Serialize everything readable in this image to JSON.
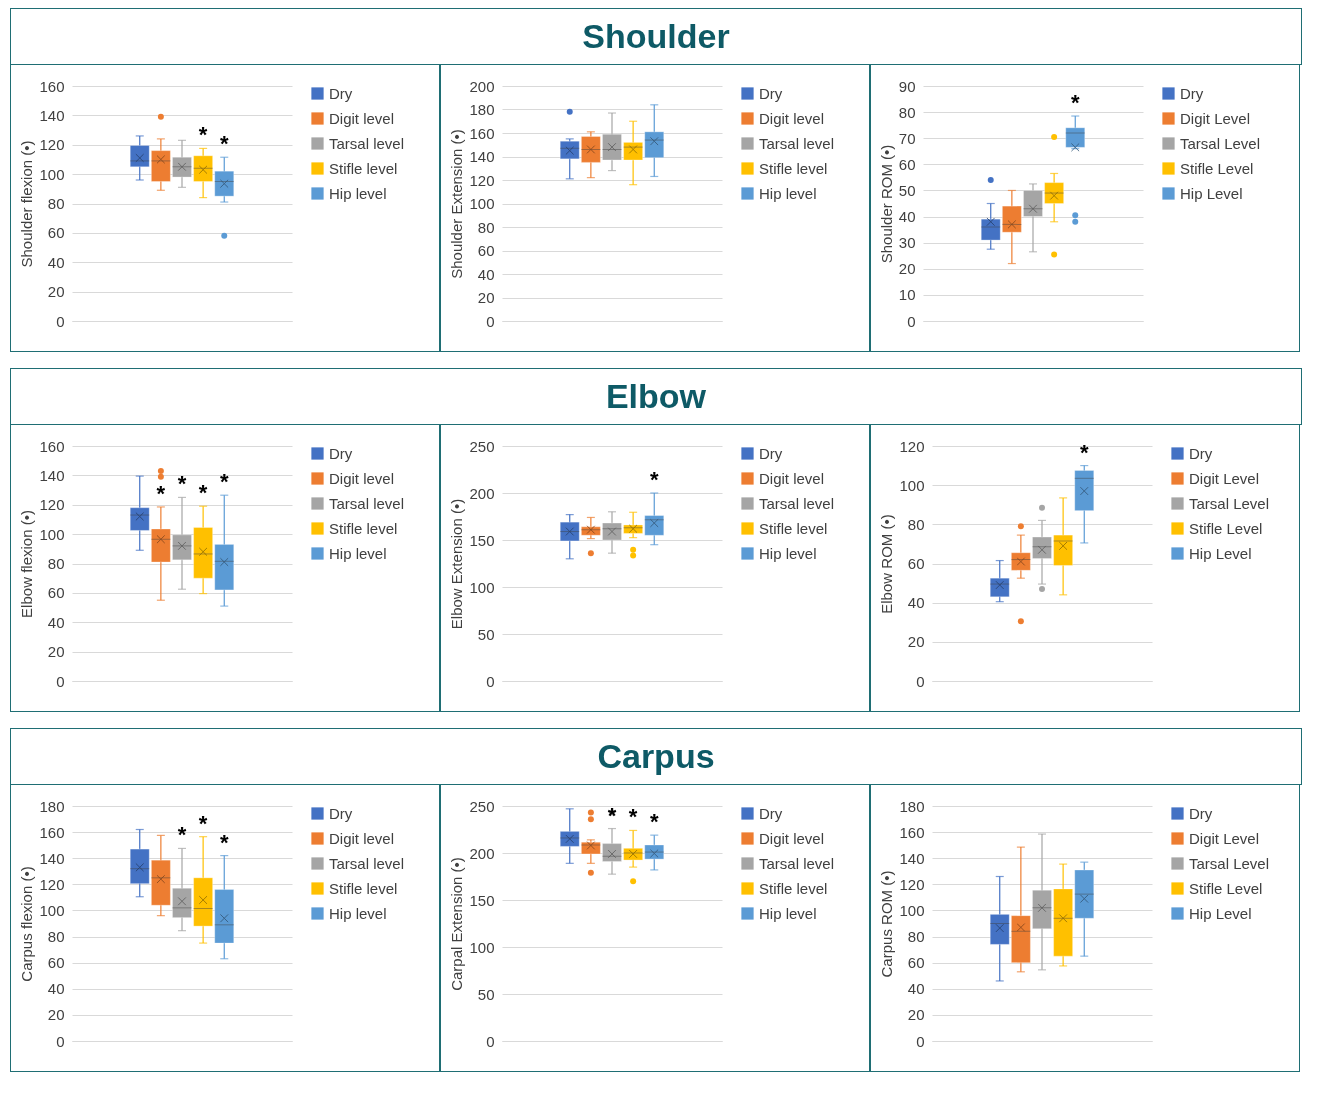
{
  "chart_data": [
    {
      "type": "other",
      "title": "Shoulder"
    },
    {
      "type": "box",
      "ylabel": "Shoulder flexion (•)",
      "categories": [
        null
      ],
      "ylim": [
        0,
        160
      ],
      "yticks": [
        0,
        20,
        40,
        60,
        80,
        100,
        120,
        140,
        160
      ],
      "grid": "y",
      "legend": "right",
      "tick_labels": "y",
      "series": [
        {
          "name": "Dry",
          "color": "#4472c4",
          "boxes": [
            {
              "low": 96,
              "q1": 105,
              "median": 109,
              "q3": 119.5,
              "high": 126,
              "mean": 111
            }
          ],
          "value_labels": [
            null
          ]
        },
        {
          "name": "Digit level",
          "color": "#ed7d31",
          "boxes": [
            {
              "low": 89,
              "q1": 95,
              "median": 109,
              "q3": 116,
              "high": 124,
              "mean": 110,
              "outliers": [
                139
              ]
            }
          ],
          "value_labels": [
            null
          ]
        },
        {
          "name": "Tarsal level",
          "color": "#a5a5a5",
          "boxes": [
            {
              "low": 91,
              "q1": 98,
              "median": 105,
              "q3": 111.5,
              "high": 123,
              "mean": 105
            }
          ],
          "value_labels": [
            null
          ]
        },
        {
          "name": "Stifle level",
          "color": "#ffc000",
          "boxes": [
            {
              "low": 84,
              "q1": 95,
              "median": 104,
              "q3": 112.5,
              "high": 117.5,
              "mean": 103
            }
          ],
          "value_labels": [
            "*"
          ]
        },
        {
          "name": "Hip level",
          "color": "#5b9bd5",
          "boxes": [
            {
              "low": 81,
              "q1": 85,
              "median": 95,
              "q3": 102,
              "high": 111.5,
              "mean": 93.5,
              "outliers": [
                58
              ]
            }
          ],
          "value_labels": [
            "*"
          ]
        }
      ]
    },
    {
      "type": "box",
      "ylabel": "Shoulder Extension (•)",
      "categories": [
        null
      ],
      "ylim": [
        0,
        200
      ],
      "yticks": [
        0,
        20,
        40,
        60,
        80,
        100,
        120,
        140,
        160,
        180,
        200
      ],
      "grid": "y",
      "legend": "right",
      "tick_labels": "y",
      "series": [
        {
          "name": "Dry",
          "color": "#4472c4",
          "boxes": [
            {
              "low": 121,
              "q1": 138,
              "median": 147,
              "q3": 153,
              "high": 155,
              "mean": 145,
              "outliers": [
                178
              ]
            }
          ],
          "value_labels": [
            null
          ]
        },
        {
          "name": "Digit level",
          "color": "#ed7d31",
          "boxes": [
            {
              "low": 122,
              "q1": 135,
              "median": 146,
              "q3": 157,
              "high": 161,
              "mean": 146
            }
          ],
          "value_labels": [
            null
          ]
        },
        {
          "name": "Tarsal level",
          "color": "#a5a5a5",
          "boxes": [
            {
              "low": 128,
              "q1": 137,
              "median": 146,
              "q3": 159,
              "high": 177,
              "mean": 148
            }
          ],
          "value_labels": [
            null
          ]
        },
        {
          "name": "Stifle level",
          "color": "#ffc000",
          "boxes": [
            {
              "low": 116,
              "q1": 137,
              "median": 148,
              "q3": 152,
              "high": 170,
              "mean": 146
            }
          ],
          "value_labels": [
            null
          ]
        },
        {
          "name": "Hip level",
          "color": "#5b9bd5",
          "boxes": [
            {
              "low": 123,
              "q1": 139,
              "median": 154,
              "q3": 161,
              "high": 184,
              "mean": 153
            }
          ],
          "value_labels": [
            null
          ]
        }
      ]
    },
    {
      "type": "box",
      "ylabel": "Shoulder ROM (•)",
      "categories": [
        null
      ],
      "ylim": [
        0,
        90
      ],
      "yticks": [
        0,
        10,
        20,
        30,
        40,
        50,
        60,
        70,
        80,
        90
      ],
      "grid": "y",
      "legend": "right",
      "tick_labels": "y",
      "series": [
        {
          "name": "Dry",
          "color": "#4472c4",
          "boxes": [
            {
              "low": 27.5,
              "q1": 31,
              "median": 36,
              "q3": 39,
              "high": 45,
              "mean": 38,
              "outliers": [
                54
              ]
            }
          ],
          "value_labels": [
            null
          ]
        },
        {
          "name": "Digit Level",
          "color": "#ed7d31",
          "boxes": [
            {
              "low": 22,
              "q1": 34,
              "median": 37,
              "q3": 44,
              "high": 50,
              "mean": 37
            }
          ],
          "value_labels": [
            null
          ]
        },
        {
          "name": "Tarsal Level",
          "color": "#a5a5a5",
          "boxes": [
            {
              "low": 26.5,
              "q1": 40,
              "median": 43,
              "q3": 50,
              "high": 52.5,
              "mean": 43
            }
          ],
          "value_labels": [
            null
          ]
        },
        {
          "name": "Stifle Level",
          "color": "#ffc000",
          "boxes": [
            {
              "low": 38,
              "q1": 45,
              "median": 49,
              "q3": 53,
              "high": 56.5,
              "mean": 48,
              "outliers": [
                70.5,
                25.5
              ]
            }
          ],
          "value_labels": [
            null
          ]
        },
        {
          "name": "Hip Level",
          "color": "#5b9bd5",
          "boxes": [
            {
              "low": 66,
              "q1": 66.5,
              "median": 72,
              "q3": 74,
              "high": 78.5,
              "mean": 66.5,
              "outliers": [
                40.5,
                38
              ]
            }
          ],
          "value_labels": [
            "*"
          ]
        }
      ]
    },
    {
      "type": "other",
      "title": "Elbow"
    },
    {
      "type": "box",
      "ylabel": "Elbow flexion (•)",
      "categories": [
        null
      ],
      "ylim": [
        0,
        160
      ],
      "yticks": [
        0,
        20,
        40,
        60,
        80,
        100,
        120,
        140,
        160
      ],
      "grid": "y",
      "legend": "right",
      "tick_labels": "y",
      "series": [
        {
          "name": "Dry",
          "color": "#4472c4",
          "boxes": [
            {
              "low": 89,
              "q1": 102.5,
              "median": 113,
              "q3": 118,
              "high": 139.5,
              "mean": 112
            }
          ],
          "value_labels": [
            null
          ]
        },
        {
          "name": "Digit level",
          "color": "#ed7d31",
          "boxes": [
            {
              "low": 55,
              "q1": 81,
              "median": 96.5,
              "q3": 103.5,
              "high": 118.5,
              "mean": 96.5,
              "outliers": [
                143,
                139
              ]
            }
          ],
          "value_labels": [
            "*"
          ]
        },
        {
          "name": "Tarsal level",
          "color": "#a5a5a5",
          "boxes": [
            {
              "low": 62.5,
              "q1": 82.5,
              "median": 92,
              "q3": 99.5,
              "high": 125,
              "mean": 92
            }
          ],
          "value_labels": [
            "*"
          ]
        },
        {
          "name": "Stifle level",
          "color": "#ffc000",
          "boxes": [
            {
              "low": 59.5,
              "q1": 70,
              "median": 86.5,
              "q3": 104.5,
              "high": 119,
              "mean": 88
            }
          ],
          "value_labels": [
            "*"
          ]
        },
        {
          "name": "Hip level",
          "color": "#5b9bd5",
          "boxes": [
            {
              "low": 51,
              "q1": 62,
              "median": 81.5,
              "q3": 93,
              "high": 126.5,
              "mean": 81
            }
          ],
          "value_labels": [
            "*"
          ]
        }
      ]
    },
    {
      "type": "box",
      "ylabel": "Elbow Extension (•)",
      "categories": [
        null
      ],
      "ylim": [
        0,
        250
      ],
      "yticks": [
        0,
        50,
        100,
        150,
        200,
        250
      ],
      "grid": "y",
      "legend": "right",
      "tick_labels": "y",
      "series": [
        {
          "name": "Dry",
          "color": "#4472c4",
          "boxes": [
            {
              "low": 130,
              "q1": 149,
              "median": 159,
              "q3": 169,
              "high": 177,
              "mean": 159
            }
          ],
          "value_labels": [
            null
          ]
        },
        {
          "name": "Digit level",
          "color": "#ed7d31",
          "boxes": [
            {
              "low": 151.5,
              "q1": 155,
              "median": 161,
              "q3": 164,
              "high": 174,
              "mean": 161,
              "outliers": [
                136
              ]
            }
          ],
          "value_labels": [
            null
          ]
        },
        {
          "name": "Tarsal level",
          "color": "#a5a5a5",
          "boxes": [
            {
              "low": 136,
              "q1": 150,
              "median": 162,
              "q3": 168,
              "high": 180,
              "mean": 159
            }
          ],
          "value_labels": [
            null
          ]
        },
        {
          "name": "Stifle level",
          "color": "#ffc000",
          "boxes": [
            {
              "low": 152.5,
              "q1": 157,
              "median": 163,
              "q3": 166,
              "high": 179.5,
              "mean": 162,
              "outliers": [
                139.5,
                133.5
              ]
            }
          ],
          "value_labels": [
            null
          ]
        },
        {
          "name": "Hip level",
          "color": "#5b9bd5",
          "boxes": [
            {
              "low": 145,
              "q1": 155,
              "median": 171.5,
              "q3": 176,
              "high": 200,
              "mean": 168
            }
          ],
          "value_labels": [
            "*"
          ]
        }
      ]
    },
    {
      "type": "box",
      "ylabel": "Elbow ROM (•)",
      "categories": [
        null
      ],
      "ylim": [
        0,
        120
      ],
      "yticks": [
        0,
        20,
        40,
        60,
        80,
        100,
        120
      ],
      "grid": "y",
      "legend": "right",
      "tick_labels": "y",
      "series": [
        {
          "name": "Dry",
          "color": "#4472c4",
          "boxes": [
            {
              "low": 40.5,
              "q1": 43,
              "median": 49.5,
              "q3": 52.5,
              "high": 61.5,
              "mean": 49
            }
          ],
          "value_labels": [
            null
          ]
        },
        {
          "name": "Digit Level",
          "color": "#ed7d31",
          "boxes": [
            {
              "low": 52.5,
              "q1": 56.5,
              "median": 62,
              "q3": 65.5,
              "high": 74.5,
              "mean": 61,
              "outliers": [
                79,
                30.5
              ]
            }
          ],
          "value_labels": [
            null
          ]
        },
        {
          "name": "Tarsal Level",
          "color": "#a5a5a5",
          "boxes": [
            {
              "low": 49.5,
              "q1": 62.5,
              "median": 68.5,
              "q3": 73.5,
              "high": 82,
              "mean": 67,
              "outliers": [
                88.5,
                47
              ]
            }
          ],
          "value_labels": [
            null
          ]
        },
        {
          "name": "Stifle Level",
          "color": "#ffc000",
          "boxes": [
            {
              "low": 44,
              "q1": 59,
              "median": 71.5,
              "q3": 74.5,
              "high": 93.5,
              "mean": 69
            }
          ],
          "value_labels": [
            null
          ]
        },
        {
          "name": "Hip Level",
          "color": "#5b9bd5",
          "boxes": [
            {
              "low": 70.5,
              "q1": 87,
              "median": 103.5,
              "q3": 107.5,
              "high": 110,
              "mean": 97
            }
          ],
          "value_labels": [
            "*"
          ]
        }
      ]
    },
    {
      "type": "other",
      "title": "Carpus"
    },
    {
      "type": "box",
      "ylabel": "Carpus flexion (•)",
      "categories": [
        null
      ],
      "ylim": [
        0,
        180
      ],
      "yticks": [
        0,
        20,
        40,
        60,
        80,
        100,
        120,
        140,
        160,
        180
      ],
      "grid": "y",
      "legend": "right",
      "tick_labels": "y",
      "series": [
        {
          "name": "Dry",
          "color": "#4472c4",
          "boxes": [
            {
              "low": 110.5,
              "q1": 120.5,
              "median": 132,
              "q3": 147,
              "high": 162,
              "mean": 133
            }
          ],
          "value_labels": [
            null
          ]
        },
        {
          "name": "Digit level",
          "color": "#ed7d31",
          "boxes": [
            {
              "low": 96,
              "q1": 104,
              "median": 125,
              "q3": 138.5,
              "high": 157.5,
              "mean": 124
            }
          ],
          "value_labels": [
            null
          ]
        },
        {
          "name": "Tarsal level",
          "color": "#a5a5a5",
          "boxes": [
            {
              "low": 84.5,
              "q1": 94.5,
              "median": 102,
              "q3": 117,
              "high": 147.5,
              "mean": 107
            }
          ],
          "value_labels": [
            "*"
          ]
        },
        {
          "name": "Stifle level",
          "color": "#ffc000",
          "boxes": [
            {
              "low": 75,
              "q1": 88,
              "median": 101.5,
              "q3": 125,
              "high": 156.5,
              "mean": 108
            }
          ],
          "value_labels": [
            "*"
          ]
        },
        {
          "name": "Hip level",
          "color": "#5b9bd5",
          "boxes": [
            {
              "low": 63,
              "q1": 75,
              "median": 89,
              "q3": 116,
              "high": 142,
              "mean": 94
            }
          ],
          "value_labels": [
            "*"
          ]
        }
      ]
    },
    {
      "type": "box",
      "ylabel": "Carpal Extension (•)",
      "categories": [
        null
      ],
      "ylim": [
        0,
        250
      ],
      "yticks": [
        0,
        50,
        100,
        150,
        200,
        250
      ],
      "grid": "y",
      "legend": "right",
      "tick_labels": "y",
      "series": [
        {
          "name": "Dry",
          "color": "#4472c4",
          "boxes": [
            {
              "low": 189,
              "q1": 207,
              "median": 216,
              "q3": 223,
              "high": 247,
              "mean": 215
            }
          ],
          "value_labels": [
            null
          ]
        },
        {
          "name": "Digit level",
          "color": "#ed7d31",
          "boxes": [
            {
              "low": 189,
              "q1": 199,
              "median": 208.5,
              "q3": 211.5,
              "high": 214,
              "mean": 208,
              "outliers": [
                243,
                236,
                179
              ]
            }
          ],
          "value_labels": [
            null
          ]
        },
        {
          "name": "Tarsal level",
          "color": "#a5a5a5",
          "boxes": [
            {
              "low": 177.5,
              "q1": 191,
              "median": 196.5,
              "q3": 210,
              "high": 226,
              "mean": 199,
              "outliers": [
                243
              ]
            }
          ],
          "value_labels": [
            "*"
          ]
        },
        {
          "name": "Stifle level",
          "color": "#ffc000",
          "boxes": [
            {
              "low": 185,
              "q1": 192.5,
              "median": 200,
              "q3": 205,
              "high": 224,
              "mean": 199,
              "outliers": [
                170
              ]
            }
          ],
          "value_labels": [
            "*"
          ]
        },
        {
          "name": "Hip level",
          "color": "#5b9bd5",
          "boxes": [
            {
              "low": 182,
              "q1": 193.5,
              "median": 201,
              "q3": 208.5,
              "high": 219,
              "mean": 199.5
            }
          ],
          "value_labels": [
            "*"
          ]
        }
      ]
    },
    {
      "type": "box",
      "ylabel": "Carpus ROM (•)",
      "categories": [
        null
      ],
      "ylim": [
        0,
        180
      ],
      "yticks": [
        0,
        20,
        40,
        60,
        80,
        100,
        120,
        140,
        160,
        180
      ],
      "grid": "y",
      "legend": "right",
      "tick_labels": "y",
      "series": [
        {
          "name": "Dry",
          "color": "#4472c4",
          "boxes": [
            {
              "low": 46,
              "q1": 74,
              "median": 90,
              "q3": 97,
              "high": 126,
              "mean": 86.5
            }
          ],
          "value_labels": [
            null
          ]
        },
        {
          "name": "Digit Level",
          "color": "#ed7d31",
          "boxes": [
            {
              "low": 53,
              "q1": 60,
              "median": 84,
              "q3": 96,
              "high": 148.5,
              "mean": 87
            }
          ],
          "value_labels": [
            null
          ]
        },
        {
          "name": "Tarsal Level",
          "color": "#a5a5a5",
          "boxes": [
            {
              "low": 54.5,
              "q1": 86,
              "median": 102,
              "q3": 115.5,
              "high": 158.5,
              "mean": 102
            }
          ],
          "value_labels": [
            null
          ]
        },
        {
          "name": "Stifle Level",
          "color": "#ffc000",
          "boxes": [
            {
              "low": 57.5,
              "q1": 65,
              "median": 94,
              "q3": 116.5,
              "high": 135.5,
              "mean": 94
            }
          ],
          "value_labels": [
            null
          ]
        },
        {
          "name": "Hip Level",
          "color": "#5b9bd5",
          "boxes": [
            {
              "low": 65,
              "q1": 94,
              "median": 112.5,
              "q3": 131,
              "high": 137,
              "mean": 109
            }
          ],
          "value_labels": [
            null
          ]
        }
      ]
    }
  ]
}
